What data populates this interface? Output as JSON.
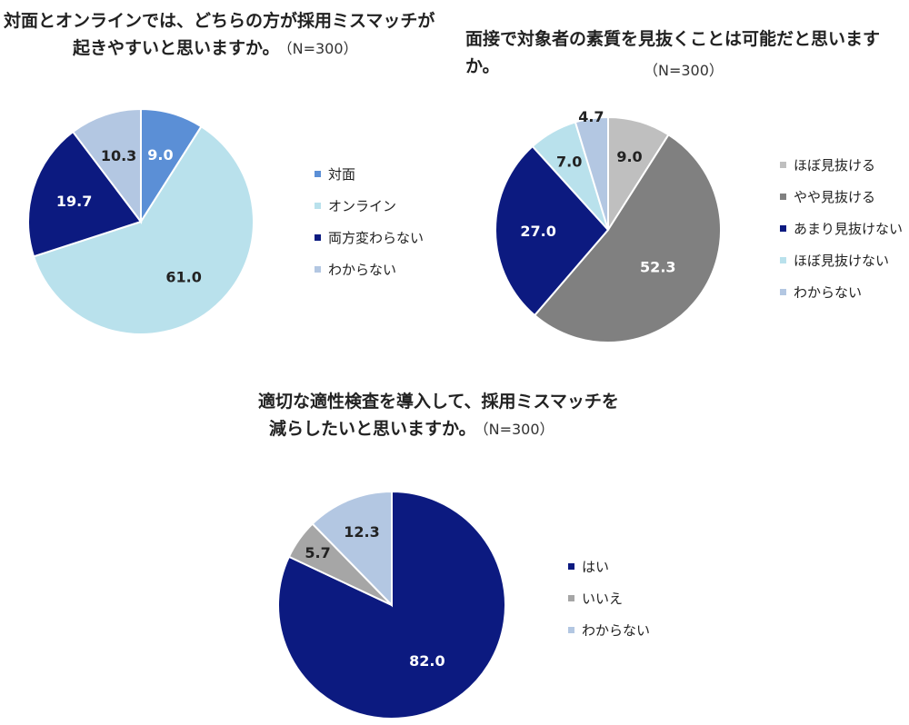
{
  "chart_data": [
    {
      "type": "pie",
      "title_line1": "対面とオンラインでは、どちらの方が採用ミスマッチが",
      "title_line2": "起きやすいと思いますか。",
      "n_label": "（N=300）",
      "labels": [
        "対面",
        "オンライン",
        "両方変わらない",
        "わからない"
      ],
      "values": [
        9.0,
        61.0,
        19.7,
        10.3
      ],
      "value_labels": [
        "9.0",
        "61.0",
        "19.7",
        "10.3"
      ],
      "colors": [
        "#5b8fd6",
        "#b9e1ec",
        "#0c1a80",
        "#b3c7e2"
      ],
      "label_colors": [
        "#ffffff",
        "#222222",
        "#ffffff",
        "#222222"
      ],
      "legend_position": "right"
    },
    {
      "type": "pie",
      "title_line1": "面接で対象者の素質を見抜くことは可能だと思いますか。",
      "n_label": "（N=300）",
      "labels": [
        "ほぼ見抜ける",
        "やや見抜ける",
        "あまり見抜けない",
        "ほぼ見抜けない",
        "わからない"
      ],
      "values": [
        9.0,
        52.3,
        27.0,
        7.0,
        4.7
      ],
      "value_labels": [
        "9.0",
        "52.3",
        "27.0",
        "7.0",
        "4.7"
      ],
      "colors": [
        "#bfbfbf",
        "#808080",
        "#0c1a80",
        "#b9e1ec",
        "#b3c7e2"
      ],
      "label_colors": [
        "#222222",
        "#ffffff",
        "#ffffff",
        "#222222",
        "#222222"
      ],
      "legend_position": "right"
    },
    {
      "type": "pie",
      "title_line1": "適切な適性検査を導入して、採用ミスマッチを",
      "title_line2": "減らしたいと思いますか。",
      "n_label": "（N=300）",
      "labels": [
        "はい",
        "いいえ",
        "わからない"
      ],
      "values": [
        82.0,
        5.7,
        12.3
      ],
      "value_labels": [
        "82.0",
        "5.7",
        "12.3"
      ],
      "colors": [
        "#0c1a80",
        "#a6a6a6",
        "#b3c7e2"
      ],
      "label_colors": [
        "#ffffff",
        "#222222",
        "#222222"
      ],
      "legend_position": "right"
    }
  ]
}
